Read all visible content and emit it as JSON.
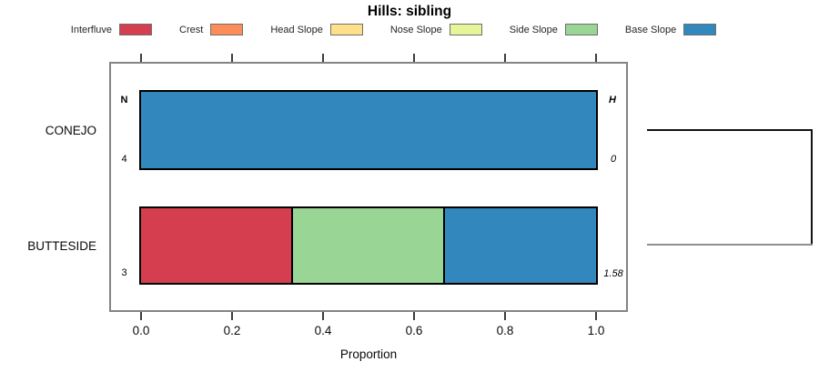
{
  "title": "Hills: sibling",
  "legend": [
    {
      "label": "Interfluve",
      "color": "#D53E4F"
    },
    {
      "label": "Crest",
      "color": "#FC8D59"
    },
    {
      "label": "Head Slope",
      "color": "#FEE08B"
    },
    {
      "label": "Nose Slope",
      "color": "#E6F598"
    },
    {
      "label": "Side Slope",
      "color": "#99D594"
    },
    {
      "label": "Base Slope",
      "color": "#3288BD"
    }
  ],
  "axis": {
    "ticks": [
      "0.0",
      "0.2",
      "0.4",
      "0.6",
      "0.8",
      "1.0"
    ],
    "label": "Proportion"
  },
  "chart_data": {
    "type": "bar",
    "orientation": "horizontal",
    "stacked": true,
    "title": "Hills: sibling",
    "xlabel": "Proportion",
    "xlim": [
      0,
      1
    ],
    "xticks": [
      0.0,
      0.2,
      0.4,
      0.6,
      0.8,
      1.0
    ],
    "grid": false,
    "legend_position": "top",
    "categories": [
      "CONEJO",
      "BUTTESIDE"
    ],
    "series": [
      {
        "name": "Interfluve",
        "color": "#D53E4F",
        "values": [
          0,
          0.333
        ]
      },
      {
        "name": "Crest",
        "color": "#FC8D59",
        "values": [
          0,
          0
        ]
      },
      {
        "name": "Head Slope",
        "color": "#FEE08B",
        "values": [
          0,
          0
        ]
      },
      {
        "name": "Nose Slope",
        "color": "#E6F598",
        "values": [
          0,
          0
        ]
      },
      {
        "name": "Side Slope",
        "color": "#99D594",
        "values": [
          0,
          0.333
        ]
      },
      {
        "name": "Base Slope",
        "color": "#3288BD",
        "values": [
          1.0,
          0.333
        ]
      }
    ],
    "annotations": {
      "n_header": "N",
      "h_header": "H",
      "rows": [
        {
          "category": "CONEJO",
          "n": "4",
          "h": "0"
        },
        {
          "category": "BUTTESIDE",
          "n": "3",
          "h": "1.58"
        }
      ]
    },
    "dendrogram": {
      "joins": [
        "CONEJO",
        "BUTTESIDE"
      ],
      "side": "right"
    }
  }
}
